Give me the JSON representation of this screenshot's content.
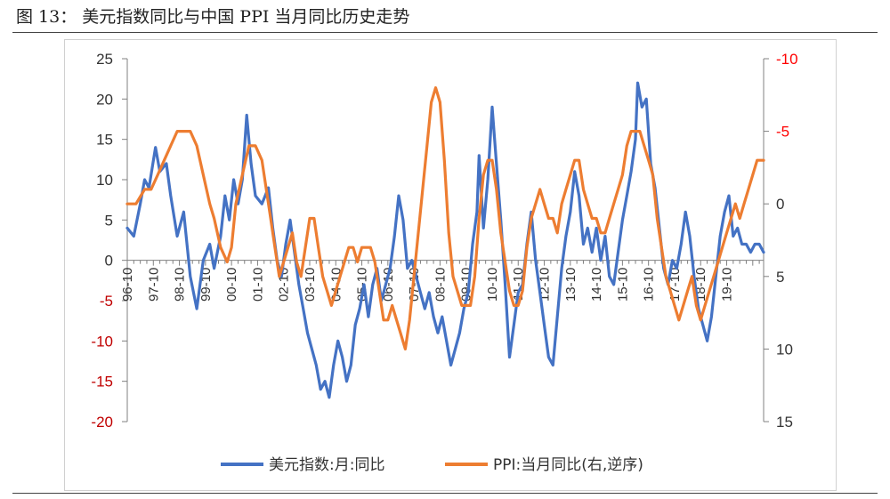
{
  "figure_title": "图 13：  美元指数同比与中国 PPI 当月同比历史走势",
  "colors": {
    "series_dxy": "#4472C4",
    "series_ppi": "#ED7D31",
    "axis_left": "#C00000",
    "axis_right": "#FF0000",
    "text": "#333333"
  },
  "chart_data": {
    "type": "line",
    "grid": false,
    "legend_position": "bottom",
    "x_tick_labels": [
      "96-10",
      "97-10",
      "98-10",
      "99-10",
      "00-10",
      "01-10",
      "02-10",
      "03-10",
      "04-10",
      "05-10",
      "06-10",
      "07-10",
      "08-10",
      "09-10",
      "10-10",
      "11-10",
      "12-10",
      "13-10",
      "14-10",
      "15-10",
      "16-10",
      "17-10",
      "18-10",
      "19-10"
    ],
    "y_left": {
      "min": -20,
      "max": 25,
      "ticks": [
        -20,
        -15,
        -10,
        -5,
        0,
        5,
        10,
        15,
        20,
        25
      ]
    },
    "y_right": {
      "min": -10,
      "max": 15,
      "reversed": true,
      "ticks": [
        -10,
        -5,
        0,
        5,
        10,
        15
      ]
    },
    "series": [
      {
        "name": "美元指数:月:同比",
        "axis": "left",
        "start": "1996-10",
        "end": "2020-03",
        "points": [
          [
            0,
            4
          ],
          [
            3,
            3
          ],
          [
            6,
            7
          ],
          [
            8,
            10
          ],
          [
            10,
            9
          ],
          [
            13,
            14
          ],
          [
            15,
            11
          ],
          [
            18,
            12
          ],
          [
            20,
            8
          ],
          [
            23,
            3
          ],
          [
            26,
            6
          ],
          [
            29,
            -2
          ],
          [
            32,
            -6
          ],
          [
            35,
            0
          ],
          [
            38,
            2
          ],
          [
            40,
            -1
          ],
          [
            43,
            3
          ],
          [
            45,
            8
          ],
          [
            47,
            5
          ],
          [
            49,
            10
          ],
          [
            51,
            7
          ],
          [
            53,
            10
          ],
          [
            55,
            18
          ],
          [
            57,
            12
          ],
          [
            59,
            8
          ],
          [
            62,
            7
          ],
          [
            65,
            9
          ],
          [
            67,
            4
          ],
          [
            69,
            0
          ],
          [
            71,
            -2
          ],
          [
            73,
            2
          ],
          [
            75,
            5
          ],
          [
            77,
            1
          ],
          [
            79,
            -3
          ],
          [
            81,
            -6
          ],
          [
            83,
            -9
          ],
          [
            85,
            -11
          ],
          [
            87,
            -13
          ],
          [
            89,
            -16
          ],
          [
            91,
            -15
          ],
          [
            93,
            -17
          ],
          [
            95,
            -13
          ],
          [
            97,
            -10
          ],
          [
            99,
            -12
          ],
          [
            101,
            -15
          ],
          [
            103,
            -13
          ],
          [
            105,
            -8
          ],
          [
            107,
            -6
          ],
          [
            109,
            -3
          ],
          [
            111,
            -7
          ],
          [
            113,
            -3
          ],
          [
            115,
            -1
          ],
          [
            117,
            -5
          ],
          [
            119,
            -3
          ],
          [
            121,
            -1
          ],
          [
            123,
            3
          ],
          [
            125,
            8
          ],
          [
            127,
            5
          ],
          [
            129,
            -1
          ],
          [
            131,
            0
          ],
          [
            133,
            -2
          ],
          [
            135,
            -4
          ],
          [
            137,
            -6
          ],
          [
            139,
            -4
          ],
          [
            141,
            -7
          ],
          [
            143,
            -9
          ],
          [
            145,
            -7
          ],
          [
            147,
            -10
          ],
          [
            149,
            -13
          ],
          [
            151,
            -11
          ],
          [
            153,
            -9
          ],
          [
            155,
            -6
          ],
          [
            157,
            -4
          ],
          [
            159,
            2
          ],
          [
            161,
            6
          ],
          [
            162,
            13
          ],
          [
            164,
            4
          ],
          [
            166,
            10
          ],
          [
            168,
            19
          ],
          [
            170,
            12
          ],
          [
            172,
            5
          ],
          [
            174,
            -3
          ],
          [
            176,
            -12
          ],
          [
            178,
            -8
          ],
          [
            180,
            -4
          ],
          [
            182,
            -3
          ],
          [
            184,
            2
          ],
          [
            186,
            6
          ],
          [
            188,
            0
          ],
          [
            190,
            -4
          ],
          [
            192,
            -8
          ],
          [
            194,
            -12
          ],
          [
            196,
            -13
          ],
          [
            198,
            -7
          ],
          [
            200,
            -1
          ],
          [
            202,
            3
          ],
          [
            204,
            6
          ],
          [
            206,
            11
          ],
          [
            208,
            8
          ],
          [
            210,
            2
          ],
          [
            212,
            4
          ],
          [
            214,
            1
          ],
          [
            216,
            4
          ],
          [
            218,
            0
          ],
          [
            220,
            3
          ],
          [
            222,
            -2
          ],
          [
            224,
            -3
          ],
          [
            226,
            1
          ],
          [
            228,
            5
          ],
          [
            230,
            8
          ],
          [
            232,
            11
          ],
          [
            234,
            15
          ],
          [
            235,
            22
          ],
          [
            237,
            19
          ],
          [
            239,
            20
          ],
          [
            241,
            12
          ],
          [
            243,
            9
          ],
          [
            245,
            4
          ],
          [
            247,
            -1
          ],
          [
            249,
            -3
          ],
          [
            251,
            0
          ],
          [
            253,
            -1
          ],
          [
            255,
            2
          ],
          [
            257,
            6
          ],
          [
            259,
            3
          ],
          [
            261,
            -2
          ],
          [
            263,
            -6
          ],
          [
            265,
            -8
          ],
          [
            267,
            -10
          ],
          [
            269,
            -7
          ],
          [
            271,
            -2
          ],
          [
            273,
            3
          ],
          [
            275,
            6
          ],
          [
            277,
            8
          ],
          [
            279,
            3
          ],
          [
            281,
            4
          ],
          [
            283,
            2
          ],
          [
            285,
            2
          ],
          [
            287,
            1
          ],
          [
            289,
            2
          ],
          [
            291,
            2
          ],
          [
            293,
            1
          ]
        ]
      },
      {
        "name": "PPI:当月同比(右,逆序)",
        "axis": "right",
        "start": "1996-10",
        "end": "2020-03",
        "points": [
          [
            0,
            0
          ],
          [
            4,
            0
          ],
          [
            8,
            -1
          ],
          [
            11,
            -1
          ],
          [
            14,
            -2
          ],
          [
            17,
            -3
          ],
          [
            20,
            -4
          ],
          [
            23,
            -5
          ],
          [
            26,
            -5
          ],
          [
            29,
            -5
          ],
          [
            32,
            -4
          ],
          [
            35,
            -2
          ],
          [
            38,
            0
          ],
          [
            40,
            1
          ],
          [
            43,
            3
          ],
          [
            46,
            4
          ],
          [
            48,
            3
          ],
          [
            50,
            0
          ],
          [
            53,
            -2
          ],
          [
            56,
            -4
          ],
          [
            59,
            -4
          ],
          [
            62,
            -3
          ],
          [
            64,
            -1
          ],
          [
            66,
            1
          ],
          [
            68,
            3
          ],
          [
            70,
            5
          ],
          [
            72,
            4
          ],
          [
            74,
            3
          ],
          [
            76,
            2
          ],
          [
            78,
            4
          ],
          [
            80,
            5
          ],
          [
            82,
            3
          ],
          [
            84,
            1
          ],
          [
            86,
            1
          ],
          [
            88,
            3
          ],
          [
            90,
            5
          ],
          [
            92,
            6
          ],
          [
            94,
            7
          ],
          [
            96,
            6
          ],
          [
            98,
            5
          ],
          [
            100,
            4
          ],
          [
            102,
            3
          ],
          [
            104,
            3
          ],
          [
            106,
            4
          ],
          [
            108,
            3
          ],
          [
            110,
            3
          ],
          [
            112,
            3
          ],
          [
            114,
            4
          ],
          [
            116,
            6
          ],
          [
            118,
            8
          ],
          [
            120,
            8
          ],
          [
            122,
            7
          ],
          [
            124,
            8
          ],
          [
            126,
            9
          ],
          [
            128,
            10
          ],
          [
            130,
            8
          ],
          [
            132,
            5
          ],
          [
            134,
            2
          ],
          [
            136,
            -1
          ],
          [
            138,
            -4
          ],
          [
            140,
            -7
          ],
          [
            142,
            -8
          ],
          [
            144,
            -7
          ],
          [
            146,
            -3
          ],
          [
            148,
            2
          ],
          [
            150,
            5
          ],
          [
            152,
            6
          ],
          [
            154,
            7
          ],
          [
            156,
            7
          ],
          [
            158,
            7
          ],
          [
            160,
            5
          ],
          [
            162,
            1
          ],
          [
            164,
            -2
          ],
          [
            166,
            -3
          ],
          [
            168,
            -3
          ],
          [
            170,
            -1
          ],
          [
            172,
            2
          ],
          [
            174,
            4
          ],
          [
            176,
            6
          ],
          [
            178,
            7
          ],
          [
            180,
            7
          ],
          [
            182,
            6
          ],
          [
            184,
            3
          ],
          [
            186,
            1
          ],
          [
            188,
            0
          ],
          [
            190,
            -1
          ],
          [
            192,
            0
          ],
          [
            194,
            1
          ],
          [
            196,
            1
          ],
          [
            198,
            2
          ],
          [
            200,
            0
          ],
          [
            202,
            -1
          ],
          [
            204,
            -2
          ],
          [
            206,
            -3
          ],
          [
            208,
            -3
          ],
          [
            210,
            -1
          ],
          [
            212,
            0
          ],
          [
            214,
            1
          ],
          [
            216,
            1
          ],
          [
            218,
            2
          ],
          [
            220,
            2
          ],
          [
            222,
            1
          ],
          [
            224,
            0
          ],
          [
            226,
            -1
          ],
          [
            228,
            -2
          ],
          [
            230,
            -4
          ],
          [
            232,
            -5
          ],
          [
            234,
            -5
          ],
          [
            236,
            -5
          ],
          [
            238,
            -4
          ],
          [
            240,
            -3
          ],
          [
            242,
            -2
          ],
          [
            244,
            1
          ],
          [
            246,
            3
          ],
          [
            248,
            5
          ],
          [
            250,
            6
          ],
          [
            252,
            7
          ],
          [
            254,
            8
          ],
          [
            256,
            7
          ],
          [
            258,
            6
          ],
          [
            260,
            5
          ],
          [
            262,
            7
          ],
          [
            264,
            8
          ],
          [
            266,
            7
          ],
          [
            268,
            6
          ],
          [
            270,
            5
          ],
          [
            272,
            4
          ],
          [
            274,
            3
          ],
          [
            276,
            2
          ],
          [
            278,
            1
          ],
          [
            280,
            0
          ],
          [
            282,
            1
          ],
          [
            284,
            0
          ],
          [
            286,
            -1
          ],
          [
            288,
            -2
          ],
          [
            290,
            -3
          ],
          [
            293,
            -3
          ]
        ]
      }
    ]
  }
}
